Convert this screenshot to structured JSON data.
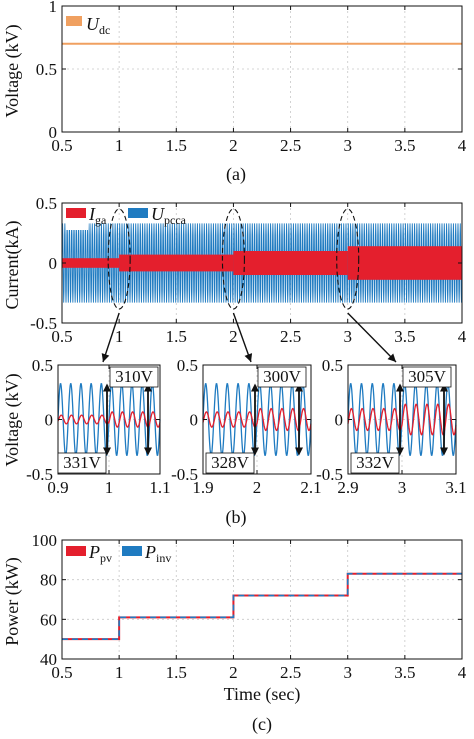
{
  "chart_data": [
    {
      "id": "a",
      "type": "line",
      "caption": "(a)",
      "ylabel": "Voltage (kV)",
      "xlabel": "",
      "xlim": [
        0.5,
        4
      ],
      "ylim": [
        0,
        1
      ],
      "xticks": [
        "0.5",
        "1",
        "1.5",
        "2",
        "2.5",
        "3",
        "3.5",
        "4"
      ],
      "yticks": [
        "0",
        "0.5",
        "1"
      ],
      "grid": true,
      "legend_position": "top-left",
      "series": [
        {
          "name": "U",
          "sub": "dc",
          "color": "#f0a060",
          "x": [
            0.5,
            4
          ],
          "y": [
            0.7,
            0.7
          ]
        }
      ]
    },
    {
      "id": "b",
      "type": "line",
      "caption": "(b)",
      "ylabel": "Current(kA)",
      "xlim": [
        0.5,
        4
      ],
      "ylim": [
        -0.5,
        0.5
      ],
      "xticks": [
        "0.5",
        "1",
        "1.5",
        "2",
        "2.5",
        "3",
        "3.5",
        "4"
      ],
      "yticks": [
        "-0.5",
        "0",
        "0.5"
      ],
      "grid": true,
      "legend_position": "top-left",
      "series": [
        {
          "name": "I",
          "sub": "ga",
          "color": "#e41f2d",
          "amplitude_steps": [
            {
              "x0": 0.5,
              "x1": 1,
              "amp": 0.04
            },
            {
              "x0": 1,
              "x1": 2,
              "amp": 0.07
            },
            {
              "x0": 2,
              "x1": 3,
              "amp": 0.1
            },
            {
              "x0": 3,
              "x1": 4,
              "amp": 0.14
            }
          ]
        },
        {
          "name": "U",
          "sub": "pcca",
          "color": "#1f7bc1",
          "amplitude": 0.33
        }
      ],
      "zooms": [
        {
          "xlim": [
            0.9,
            1.1
          ],
          "xticks": [
            "0.9",
            "1",
            "1.1"
          ],
          "label_top": "310V",
          "label_bottom": "331V",
          "amp_before": 0.04,
          "amp_after": 0.07,
          "switch": 1
        },
        {
          "xlim": [
            1.9,
            2.1
          ],
          "xticks": [
            "1.9",
            "2",
            "2.1"
          ],
          "label_top": "300V",
          "label_bottom": "328V",
          "amp_before": 0.07,
          "amp_after": 0.1,
          "switch": 2
        },
        {
          "xlim": [
            2.9,
            3.1
          ],
          "xticks": [
            "2.9",
            "3",
            "3.1"
          ],
          "label_top": "305V",
          "label_bottom": "332V",
          "amp_before": 0.1,
          "amp_after": 0.14,
          "switch": 3
        }
      ],
      "zoom_ylabel": "Voltage (kV)",
      "zoom_yticks": [
        "-0.5",
        "0",
        "0.5"
      ],
      "zoom_ylim": [
        -0.5,
        0.5
      ]
    },
    {
      "id": "c",
      "type": "line",
      "caption": "(c)",
      "ylabel": "Power (kW)",
      "xlabel": "Time (sec)",
      "xlim": [
        0.5,
        4
      ],
      "ylim": [
        40,
        100
      ],
      "xticks": [
        "0.5",
        "1",
        "1.5",
        "2",
        "2.5",
        "3",
        "3.5",
        "4"
      ],
      "yticks": [
        "40",
        "60",
        "80",
        "100"
      ],
      "grid": true,
      "legend_position": "top-left",
      "series": [
        {
          "name": "P",
          "sub": "pv",
          "color": "#e41f2d",
          "x": [
            0.5,
            1,
            1,
            2,
            2,
            3,
            3,
            4
          ],
          "y": [
            50,
            50,
            61,
            61,
            72,
            72,
            83,
            83
          ]
        },
        {
          "name": "P",
          "sub": "inv",
          "color": "#1f7bc1",
          "x": [
            0.5,
            1,
            1,
            2,
            2,
            3,
            3,
            4
          ],
          "y": [
            50,
            50,
            61,
            61,
            72,
            72,
            83,
            83
          ]
        }
      ]
    }
  ]
}
